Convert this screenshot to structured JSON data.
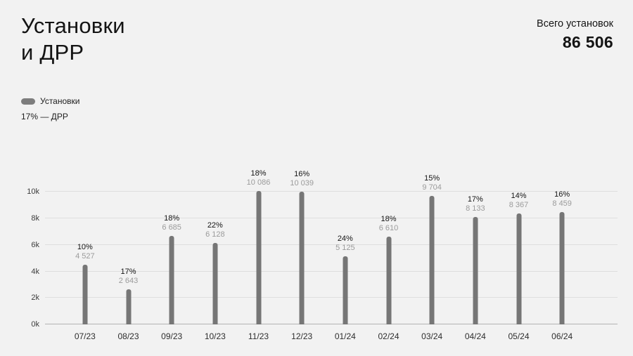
{
  "header": {
    "title_line1": "Установки",
    "title_line2": "и ДРР",
    "total_label": "Всего установок",
    "total_value": "86 506"
  },
  "legend": {
    "installs_label": "Установки",
    "drr_label": "17% — ДРР",
    "swatch_color": "#7d7d7d"
  },
  "chart_data": {
    "type": "bar",
    "title": "Установки и ДРР",
    "xlabel": "",
    "ylabel": "",
    "categories": [
      "07/23",
      "08/23",
      "09/23",
      "10/23",
      "11/23",
      "12/23",
      "01/24",
      "02/24",
      "03/24",
      "04/24",
      "05/24",
      "06/24"
    ],
    "series": [
      {
        "name": "Установки",
        "values": [
          4527,
          2643,
          6685,
          6128,
          10086,
          10039,
          5125,
          6610,
          9704,
          8133,
          8367,
          8459
        ]
      },
      {
        "name": "ДРР %",
        "values": [
          10,
          17,
          18,
          22,
          18,
          16,
          24,
          18,
          15,
          17,
          14,
          16
        ]
      }
    ],
    "value_labels": [
      "4 527",
      "2 643",
      "6 685",
      "6 128",
      "10 086",
      "10 039",
      "5 125",
      "6 610",
      "9 704",
      "8 133",
      "8 367",
      "8 459"
    ],
    "pct_labels": [
      "10%",
      "17%",
      "18%",
      "22%",
      "18%",
      "16%",
      "24%",
      "18%",
      "15%",
      "17%",
      "14%",
      "16%"
    ],
    "yticks": [
      0,
      2000,
      4000,
      6000,
      8000,
      10000
    ],
    "ytick_labels": [
      "0k",
      "2k",
      "4k",
      "6k",
      "8k",
      "10k"
    ],
    "ylim": [
      0,
      10000
    ],
    "ymax_scale": 10600,
    "grid": true,
    "legend_position": "top-left",
    "bar_color": "#767676"
  }
}
